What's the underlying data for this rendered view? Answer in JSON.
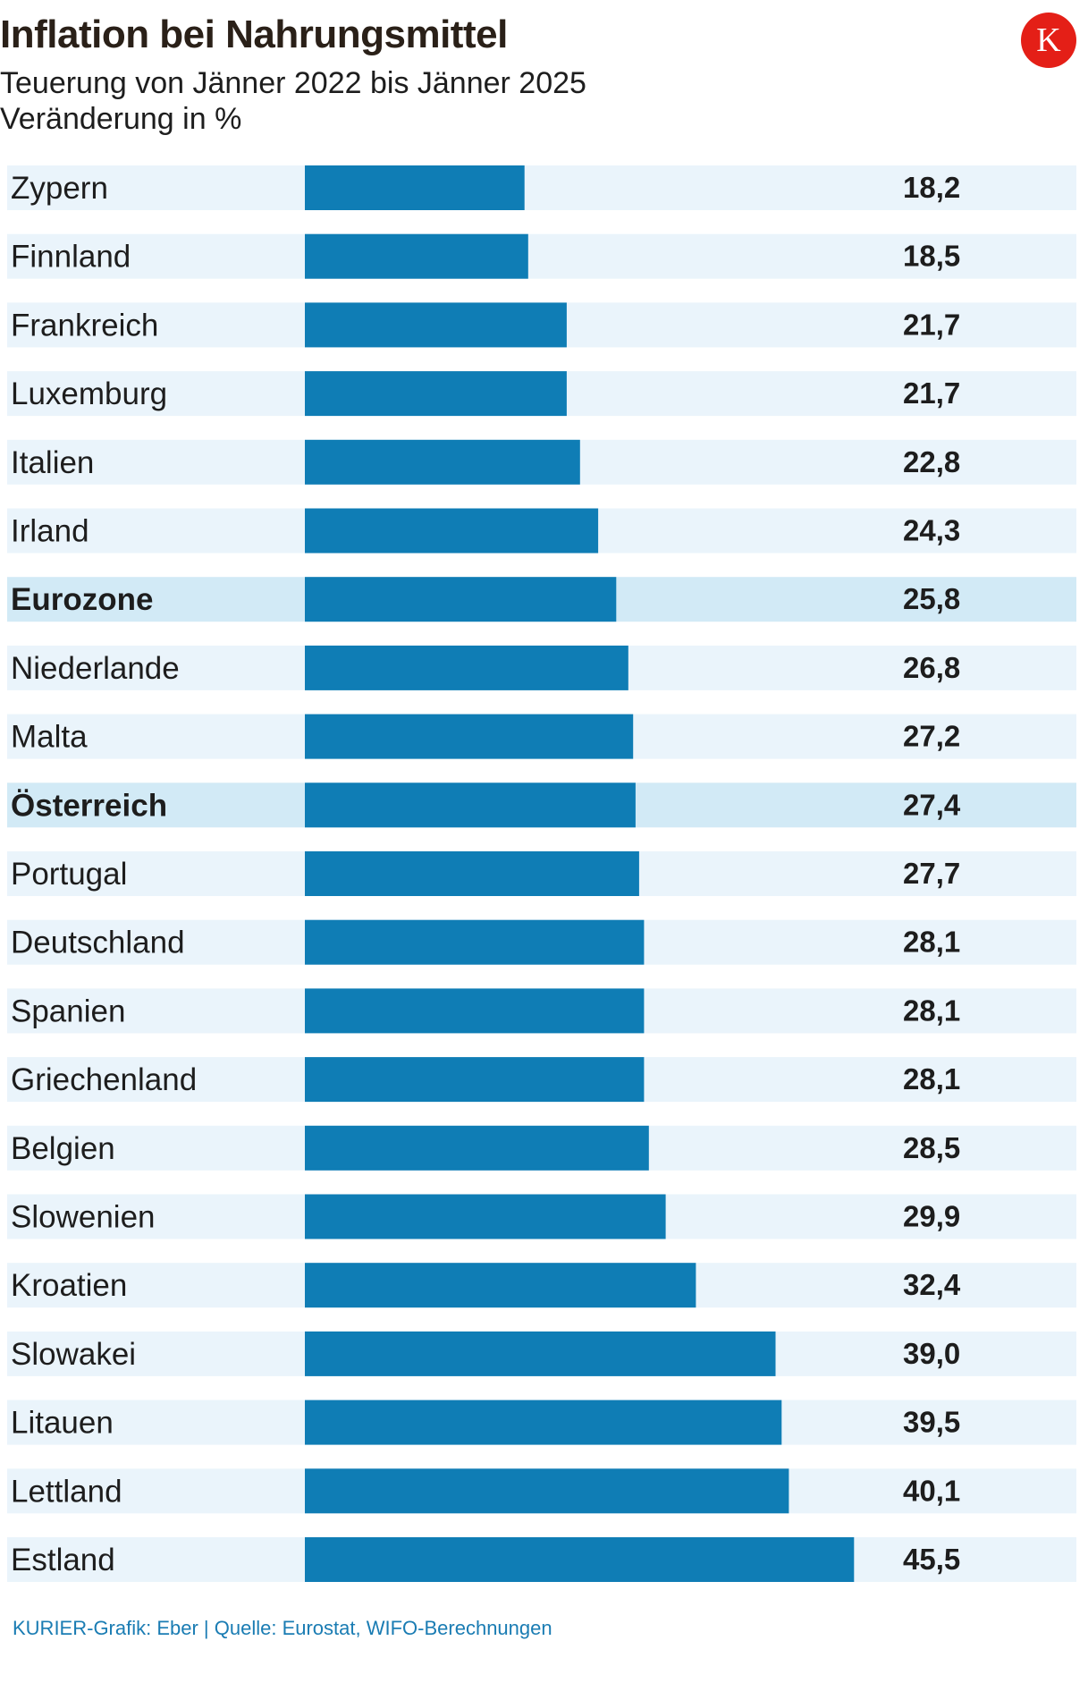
{
  "header": {
    "title": "Inflation bei Nahrungsmittel",
    "subtitle_1": "Teuerung von Jänner 2022 bis Jänner 2025",
    "subtitle_2": "Veränderung in %",
    "logo_letter": "K"
  },
  "footer": {
    "source": "KURIER-Grafik: Eber | Quelle: Eurostat, WIFO-Berechnungen"
  },
  "colors": {
    "bar": "#0f7db5",
    "row_bg": "#eaf4fb",
    "row_bg_highlight": "#d2eaf6",
    "logo": "#e41f17",
    "source_text": "#1a7cb3"
  },
  "chart_data": {
    "type": "bar",
    "orientation": "horizontal",
    "title": "Inflation bei Nahrungsmittel",
    "subtitle": "Teuerung von Jänner 2022 bis Jänner 2025",
    "unit_label": "Veränderung in %",
    "xlim": [
      0,
      50
    ],
    "highlighted": [
      "Eurozone",
      "Österreich"
    ],
    "categories": [
      "Zypern",
      "Finnland",
      "Frankreich",
      "Luxemburg",
      "Italien",
      "Irland",
      "Eurozone",
      "Niederlande",
      "Malta",
      "Österreich",
      "Portugal",
      "Deutschland",
      "Spanien",
      "Griechenland",
      "Belgien",
      "Slowenien",
      "Kroatien",
      "Slowakei",
      "Litauen",
      "Lettland",
      "Estland"
    ],
    "values": [
      18.2,
      18.5,
      21.7,
      21.7,
      22.8,
      24.3,
      25.8,
      26.8,
      27.2,
      27.4,
      27.7,
      28.1,
      28.1,
      28.1,
      28.5,
      29.9,
      32.4,
      39.0,
      39.5,
      40.1,
      45.5
    ],
    "value_labels": [
      "18,2",
      "18,5",
      "21,7",
      "21,7",
      "22,8",
      "24,3",
      "25,8",
      "26,8",
      "27,2",
      "27,4",
      "27,7",
      "28,1",
      "28,1",
      "28,1",
      "28,5",
      "29,9",
      "32,4",
      "39,0",
      "39,5",
      "40,1",
      "45,5"
    ]
  }
}
